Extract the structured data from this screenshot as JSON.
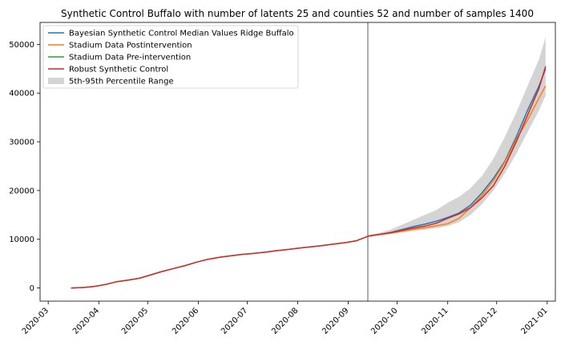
{
  "chart_data": {
    "type": "line",
    "title": "Synthetic Control Buffalo with number of latents 25 and counties 52 and number of samples 1400",
    "xlabel": "",
    "ylabel": "",
    "xlim": [
      "2020-02-25",
      "2021-01-06"
    ],
    "ylim": [
      -2700,
      54500
    ],
    "grid": false,
    "legend_position": "top-left",
    "x_ticks": [
      "2020-03",
      "2020-04",
      "2020-05",
      "2020-06",
      "2020-07",
      "2020-08",
      "2020-09",
      "2020-10",
      "2020-11",
      "2020-12",
      "2021-01"
    ],
    "y_ticks": [
      0,
      10000,
      20000,
      30000,
      40000,
      50000
    ],
    "intervention_date": "2020-09-13",
    "series": [
      {
        "name": "Bayesian Synthetic Control Median Values Ridge Buffalo",
        "color": "#1f77b4",
        "points": [
          [
            "2020-09-13",
            10700
          ],
          [
            "2020-09-20",
            11000
          ],
          [
            "2020-09-27",
            11400
          ],
          [
            "2020-10-04",
            12000
          ],
          [
            "2020-10-11",
            12600
          ],
          [
            "2020-10-18",
            13100
          ],
          [
            "2020-10-25",
            13700
          ],
          [
            "2020-11-01",
            14500
          ],
          [
            "2020-11-08",
            15400
          ],
          [
            "2020-11-15",
            17000
          ],
          [
            "2020-11-22",
            19500
          ],
          [
            "2020-11-29",
            22500
          ],
          [
            "2020-12-06",
            26000
          ],
          [
            "2020-12-13",
            31000
          ],
          [
            "2020-12-20",
            36500
          ],
          [
            "2020-12-27",
            41500
          ],
          [
            "2020-12-31",
            45000
          ]
        ]
      },
      {
        "name": "Stadium Data Postintervention",
        "color": "#ff7f0e",
        "points": [
          [
            "2020-09-13",
            10700
          ],
          [
            "2020-09-20",
            10950
          ],
          [
            "2020-09-27",
            11250
          ],
          [
            "2020-10-04",
            11650
          ],
          [
            "2020-10-11",
            12050
          ],
          [
            "2020-10-18",
            12350
          ],
          [
            "2020-10-25",
            12750
          ],
          [
            "2020-11-01",
            13200
          ],
          [
            "2020-11-08",
            14300
          ],
          [
            "2020-11-15",
            16500
          ],
          [
            "2020-11-22",
            19000
          ],
          [
            "2020-11-29",
            22000
          ],
          [
            "2020-12-06",
            25800
          ],
          [
            "2020-12-13",
            30500
          ],
          [
            "2020-12-20",
            34500
          ],
          [
            "2020-12-27",
            39000
          ],
          [
            "2020-12-31",
            41500
          ]
        ]
      },
      {
        "name": "Stadium Data Pre-intervention",
        "color": "#2ca02c",
        "points": [
          [
            "2020-03-15",
            0
          ],
          [
            "2020-03-22",
            100
          ],
          [
            "2020-03-29",
            300
          ],
          [
            "2020-04-05",
            700
          ],
          [
            "2020-04-12",
            1300
          ],
          [
            "2020-04-19",
            1600
          ],
          [
            "2020-04-26",
            2000
          ],
          [
            "2020-05-03",
            2700
          ],
          [
            "2020-05-10",
            3400
          ],
          [
            "2020-05-17",
            4000
          ],
          [
            "2020-05-24",
            4600
          ],
          [
            "2020-05-31",
            5300
          ],
          [
            "2020-06-07",
            5900
          ],
          [
            "2020-06-14",
            6300
          ],
          [
            "2020-06-21",
            6600
          ],
          [
            "2020-06-28",
            6900
          ],
          [
            "2020-07-05",
            7100
          ],
          [
            "2020-07-12",
            7350
          ],
          [
            "2020-07-19",
            7650
          ],
          [
            "2020-07-26",
            7900
          ],
          [
            "2020-08-02",
            8200
          ],
          [
            "2020-08-09",
            8450
          ],
          [
            "2020-08-16",
            8700
          ],
          [
            "2020-08-23",
            9000
          ],
          [
            "2020-08-30",
            9300
          ],
          [
            "2020-09-06",
            9700
          ],
          [
            "2020-09-13",
            10600
          ]
        ]
      },
      {
        "name": "Robust Synthetic Control",
        "color": "#d62728",
        "points": [
          [
            "2020-03-15",
            0
          ],
          [
            "2020-03-22",
            100
          ],
          [
            "2020-03-29",
            300
          ],
          [
            "2020-04-05",
            700
          ],
          [
            "2020-04-12",
            1300
          ],
          [
            "2020-04-19",
            1600
          ],
          [
            "2020-04-26",
            2000
          ],
          [
            "2020-05-03",
            2700
          ],
          [
            "2020-05-10",
            3400
          ],
          [
            "2020-05-17",
            4000
          ],
          [
            "2020-05-24",
            4600
          ],
          [
            "2020-05-31",
            5300
          ],
          [
            "2020-06-07",
            5900
          ],
          [
            "2020-06-14",
            6300
          ],
          [
            "2020-06-21",
            6600
          ],
          [
            "2020-06-28",
            6900
          ],
          [
            "2020-07-05",
            7100
          ],
          [
            "2020-07-12",
            7350
          ],
          [
            "2020-07-19",
            7650
          ],
          [
            "2020-07-26",
            7900
          ],
          [
            "2020-08-02",
            8200
          ],
          [
            "2020-08-09",
            8450
          ],
          [
            "2020-08-16",
            8700
          ],
          [
            "2020-08-23",
            9000
          ],
          [
            "2020-08-30",
            9300
          ],
          [
            "2020-09-06",
            9700
          ],
          [
            "2020-09-13",
            10600
          ],
          [
            "2020-09-20",
            11000
          ],
          [
            "2020-09-27",
            11350
          ],
          [
            "2020-10-04",
            11850
          ],
          [
            "2020-10-11",
            12300
          ],
          [
            "2020-10-18",
            12700
          ],
          [
            "2020-10-25",
            13300
          ],
          [
            "2020-11-01",
            14300
          ],
          [
            "2020-11-08",
            15200
          ],
          [
            "2020-11-15",
            16500
          ],
          [
            "2020-11-22",
            18500
          ],
          [
            "2020-11-29",
            21000
          ],
          [
            "2020-12-06",
            25000
          ],
          [
            "2020-12-13",
            30000
          ],
          [
            "2020-12-20",
            35500
          ],
          [
            "2020-12-27",
            41000
          ],
          [
            "2020-12-31",
            45500
          ]
        ]
      }
    ],
    "band": {
      "name": "5th-95th Percentile Range",
      "color": "#b0b0b0",
      "upper": [
        [
          "2020-09-13",
          10800
        ],
        [
          "2020-09-20",
          11300
        ],
        [
          "2020-09-27",
          12000
        ],
        [
          "2020-10-04",
          13000
        ],
        [
          "2020-10-11",
          14000
        ],
        [
          "2020-10-18",
          15000
        ],
        [
          "2020-10-25",
          16000
        ],
        [
          "2020-11-01",
          17500
        ],
        [
          "2020-11-08",
          18700
        ],
        [
          "2020-11-15",
          20500
        ],
        [
          "2020-11-22",
          23000
        ],
        [
          "2020-11-29",
          26500
        ],
        [
          "2020-12-06",
          31000
        ],
        [
          "2020-12-13",
          36000
        ],
        [
          "2020-12-20",
          41500
        ],
        [
          "2020-12-27",
          47000
        ],
        [
          "2020-12-31",
          51500
        ]
      ],
      "lower": [
        [
          "2020-09-13",
          10600
        ],
        [
          "2020-09-20",
          10800
        ],
        [
          "2020-09-27",
          11100
        ],
        [
          "2020-10-04",
          11400
        ],
        [
          "2020-10-11",
          11700
        ],
        [
          "2020-10-18",
          12000
        ],
        [
          "2020-10-25",
          12300
        ],
        [
          "2020-11-01",
          12700
        ],
        [
          "2020-11-08",
          13500
        ],
        [
          "2020-11-15",
          15000
        ],
        [
          "2020-11-22",
          17200
        ],
        [
          "2020-11-29",
          20000
        ],
        [
          "2020-12-06",
          23500
        ],
        [
          "2020-12-13",
          27500
        ],
        [
          "2020-12-20",
          32000
        ],
        [
          "2020-12-27",
          36500
        ],
        [
          "2020-12-31",
          39500
        ]
      ]
    }
  }
}
